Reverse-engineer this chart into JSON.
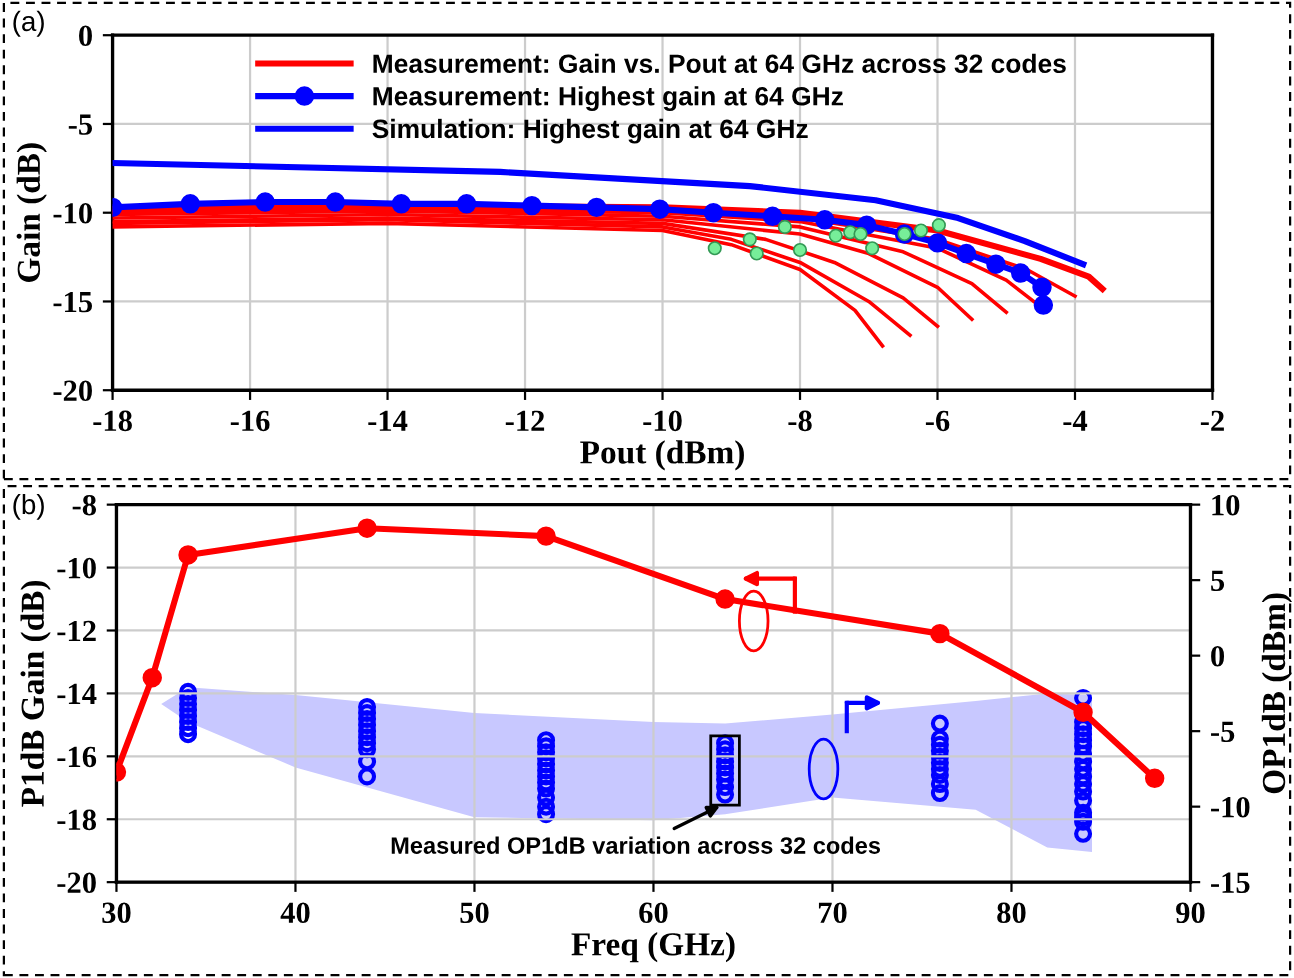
{
  "chart_data": [
    {
      "type": "line",
      "xlabel": "Pout (dBm)",
      "ylabel": "Gain (dB)",
      "xlim": [
        -18,
        -2
      ],
      "xticks": [
        -18,
        -16,
        -14,
        -12,
        -10,
        -8,
        -6,
        -4,
        -2
      ],
      "ylim": [
        -20,
        0
      ],
      "yticks": [
        -20,
        -15,
        -10,
        -5,
        0
      ],
      "grid": true,
      "legend": "top",
      "annotations": [
        "(a)"
      ],
      "series": [
        {
          "name": "Measurement: Gain vs. Pout at 64 GHz across 32 codes",
          "color": "#ff0000",
          "x": [
            -18,
            -14,
            -10,
            -8,
            -6,
            -4.5,
            -3.8,
            -3.6
          ],
          "values": [
            -9.8,
            -9.6,
            -9.7,
            -10.0,
            -11.0,
            -12.6,
            -13.6,
            -14.3
          ]
        },
        {
          "color": "#ff0000",
          "x": [
            -18,
            -14,
            -10,
            -8,
            -6,
            -4.7,
            -4.0
          ],
          "values": [
            -9.9,
            -9.7,
            -9.9,
            -10.3,
            -11.5,
            -13.2,
            -14.7
          ]
        },
        {
          "color": "#ff0000",
          "x": [
            -18,
            -14,
            -10,
            -8,
            -6,
            -5.0,
            -4.5
          ],
          "values": [
            -10.0,
            -9.8,
            -10.0,
            -10.5,
            -12.0,
            -13.8,
            -15.3
          ]
        },
        {
          "color": "#ff0000",
          "x": [
            -18,
            -14,
            -10,
            -8,
            -6.5,
            -5.5,
            -5.0
          ],
          "values": [
            -10.1,
            -9.9,
            -10.2,
            -10.8,
            -12.2,
            -14.0,
            -15.6
          ]
        },
        {
          "color": "#ff0000",
          "x": [
            -18,
            -14,
            -10,
            -8,
            -7,
            -6,
            -5.5
          ],
          "values": [
            -10.3,
            -10.1,
            -10.4,
            -11.2,
            -12.3,
            -14.2,
            -16.0
          ]
        },
        {
          "color": "#ff0000",
          "x": [
            -18,
            -14,
            -10,
            -8.5,
            -7.5,
            -6.5,
            -6.0
          ],
          "values": [
            -10.5,
            -10.3,
            -10.6,
            -11.5,
            -12.8,
            -14.8,
            -16.4
          ]
        },
        {
          "color": "#ff0000",
          "x": [
            -18,
            -14,
            -10,
            -9,
            -8,
            -7,
            -6.4
          ],
          "values": [
            -10.6,
            -10.4,
            -10.8,
            -11.5,
            -12.8,
            -15.0,
            -16.9
          ]
        },
        {
          "color": "#ff0000",
          "x": [
            -18,
            -14,
            -10,
            -9,
            -8,
            -7.2,
            -6.8
          ],
          "values": [
            -10.8,
            -10.6,
            -11.0,
            -11.8,
            -13.2,
            -15.5,
            -17.5
          ]
        },
        {
          "name": "Measurement: Highest gain at 64 GHz",
          "color": "#0000ff",
          "marker": "circle",
          "x": [
            -18,
            -16.87,
            -15.78,
            -14.76,
            -13.8,
            -12.85,
            -11.9,
            -10.96,
            -10.04,
            -9.26,
            -8.4,
            -7.64,
            -7.03,
            -6.48,
            -6.0,
            -5.58,
            -5.15,
            -4.79,
            -4.48,
            -4.46
          ],
          "values": [
            -9.7,
            -9.5,
            -9.4,
            -9.4,
            -9.5,
            -9.5,
            -9.6,
            -9.7,
            -9.8,
            -10.0,
            -10.2,
            -10.4,
            -10.7,
            -11.2,
            -11.7,
            -12.3,
            -12.9,
            -13.4,
            -14.2,
            -15.2
          ]
        },
        {
          "name": "Simulation: Highest gain at 64 GHz",
          "color": "#0000ff",
          "x": [
            -18,
            -12.36,
            -8.73,
            -6.9,
            -5.7,
            -4.73,
            -3.88
          ],
          "values": [
            -7.2,
            -7.7,
            -8.5,
            -9.3,
            -10.3,
            -11.6,
            -12.9
          ]
        },
        {
          "type": "scatter",
          "color": "#77ee99",
          "marker": "circle",
          "x": [
            -9.24,
            -8.73,
            -8.63,
            -8.22,
            -8.0,
            -7.48,
            -7.27,
            -7.12,
            -6.95,
            -6.48,
            -6.24,
            -5.98
          ],
          "values": [
            -12.0,
            -11.5,
            -12.3,
            -10.8,
            -12.1,
            -11.3,
            -11.1,
            -11.2,
            -12.0,
            -11.2,
            -11.0,
            -10.7
          ]
        }
      ]
    },
    {
      "type": "line",
      "xlabel": "Freq (GHz)",
      "ylabel": "P1dB Gain (dB)",
      "y2label": "OP1dB (dBm)",
      "xlim": [
        30,
        90
      ],
      "xticks": [
        30,
        40,
        50,
        60,
        70,
        80,
        90
      ],
      "ylim": [
        -20,
        -8
      ],
      "yticks": [
        -20,
        -18,
        -16,
        -14,
        -12,
        -10,
        -8
      ],
      "y2lim": [
        -15,
        10
      ],
      "y2ticks": [
        -15,
        -10,
        -5,
        0,
        5,
        10
      ],
      "grid": true,
      "legend": false,
      "annotations": [
        "(b)",
        {
          "text": "Measured OP1dB variation across 32 codes",
          "x": 64,
          "y": -17.5
        }
      ],
      "series": [
        {
          "type": "scatter",
          "axis": "y2",
          "color": "#0000ff",
          "marker": "circle",
          "x": [
            34,
            34,
            34,
            34,
            34,
            34,
            34,
            34,
            44,
            44,
            44,
            44,
            44,
            44,
            44,
            44,
            44,
            44,
            54,
            54,
            54,
            54,
            54,
            54,
            54,
            54,
            54,
            54,
            54,
            54,
            64,
            64,
            64,
            64,
            64,
            64,
            64,
            64,
            64,
            76,
            76,
            76,
            76,
            76,
            76,
            76,
            76,
            76,
            76,
            84,
            84,
            84,
            84,
            84,
            84,
            84,
            84,
            84,
            84,
            84,
            84,
            84,
            84,
            84,
            84,
            84
          ],
          "values": [
            -2.4,
            -2.8,
            -3.2,
            -3.6,
            -4.0,
            -4.4,
            -4.8,
            -5.2,
            -3.4,
            -3.8,
            -4.2,
            -4.6,
            -5.0,
            -5.4,
            -5.8,
            -6.2,
            -7.0,
            -8.0,
            -5.6,
            -6.0,
            -6.4,
            -6.8,
            -7.2,
            -7.6,
            -8.0,
            -8.4,
            -8.8,
            -9.4,
            -10.0,
            -10.5,
            -5.8,
            -6.2,
            -6.6,
            -7.0,
            -7.4,
            -7.8,
            -8.2,
            -8.7,
            -9.2,
            -4.5,
            -5.5,
            -5.9,
            -6.3,
            -6.7,
            -7.1,
            -7.5,
            -7.9,
            -8.5,
            -9.1,
            -2.8,
            -4.4,
            -4.8,
            -5.2,
            -5.6,
            -6.0,
            -6.5,
            -7.0,
            -7.5,
            -8.0,
            -8.5,
            -9.0,
            -9.6,
            -10.4,
            -10.7,
            -11.0,
            -11.8
          ]
        },
        {
          "color": "#ff0000",
          "marker": "circle",
          "x": [
            30,
            32,
            34,
            44,
            54,
            64,
            76,
            84,
            88
          ],
          "values": [
            -16.5,
            -13.5,
            -9.6,
            -8.75,
            -9.0,
            -11.0,
            -12.1,
            -14.6,
            -16.7
          ]
        }
      ]
    }
  ]
}
